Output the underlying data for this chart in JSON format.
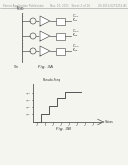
{
  "header_text": "Patent Application Publication",
  "header_date": "Nov. 10, 2011   Sheet 2 of 16",
  "header_number": "US 2011/0273252 A1",
  "fig3a_label": "Fig. 3A",
  "fig3b_label": "Fig. 3B",
  "fig3b_xlabel": "Vbias",
  "fig3b_ylabel": "Pseudo-Freq",
  "bg_color": "#f5f5f0",
  "line_color": "#555555",
  "text_color": "#333333",
  "header_color": "#999999"
}
